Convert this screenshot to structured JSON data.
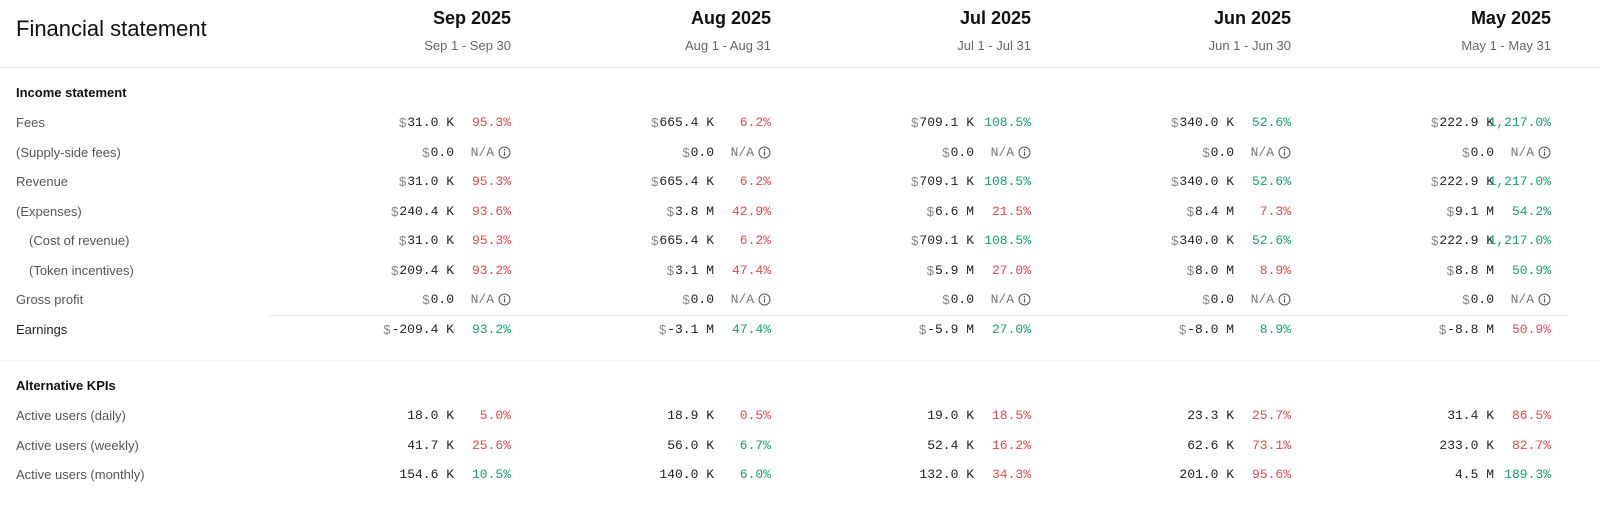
{
  "header": {
    "title": "Financial statement",
    "columns": [
      {
        "month": "Sep 2025",
        "range": "Sep 1 - Sep 30"
      },
      {
        "month": "Aug 2025",
        "range": "Aug 1 - Aug 31"
      },
      {
        "month": "Jul 2025",
        "range": "Jul 1 - Jul 31"
      },
      {
        "month": "Jun 2025",
        "range": "Jun 1 - Jun 30"
      },
      {
        "month": "May 2025",
        "range": "May 1 - May 31"
      }
    ]
  },
  "sections": [
    {
      "title": "Income statement",
      "rows": [
        {
          "label": "Fees",
          "cells": [
            {
              "currency": "$",
              "amount": "31.0 K",
              "change": "95.3%",
              "color": "#e5484d"
            },
            {
              "currency": "$",
              "amount": "665.4 K",
              "change": "6.2%",
              "color": "#e5484d"
            },
            {
              "currency": "$",
              "amount": "709.1 K",
              "change": "108.5%",
              "color": "#16a06f"
            },
            {
              "currency": "$",
              "amount": "340.0 K",
              "change": "52.6%",
              "color": "#16a06f"
            },
            {
              "currency": "$",
              "amount": "222.9 K",
              "change": "1,217.0%",
              "color": "#16a06f"
            }
          ]
        },
        {
          "label": "(Supply-side fees)",
          "cells": [
            {
              "currency": "$",
              "amount": "0.0",
              "change": "N/A"
            },
            {
              "currency": "$",
              "amount": "0.0",
              "change": "N/A"
            },
            {
              "currency": "$",
              "amount": "0.0",
              "change": "N/A"
            },
            {
              "currency": "$",
              "amount": "0.0",
              "change": "N/A"
            },
            {
              "currency": "$",
              "amount": "0.0",
              "change": "N/A"
            }
          ]
        },
        {
          "label": "Revenue",
          "cells": [
            {
              "currency": "$",
              "amount": "31.0 K",
              "change": "95.3%",
              "color": "#e5484d"
            },
            {
              "currency": "$",
              "amount": "665.4 K",
              "change": "6.2%",
              "color": "#e5484d"
            },
            {
              "currency": "$",
              "amount": "709.1 K",
              "change": "108.5%",
              "color": "#16a06f"
            },
            {
              "currency": "$",
              "amount": "340.0 K",
              "change": "52.6%",
              "color": "#16a06f"
            },
            {
              "currency": "$",
              "amount": "222.9 K",
              "change": "1,217.0%",
              "color": "#16a06f"
            }
          ]
        },
        {
          "label": "(Expenses)",
          "cells": [
            {
              "currency": "$",
              "amount": "240.4 K",
              "change": "93.6%",
              "color": "#e5484d"
            },
            {
              "currency": "$",
              "amount": "3.8 M",
              "change": "42.9%",
              "color": "#e5484d"
            },
            {
              "currency": "$",
              "amount": "6.6 M",
              "change": "21.5%",
              "color": "#e5484d"
            },
            {
              "currency": "$",
              "amount": "8.4 M",
              "change": "7.3%",
              "color": "#e5484d"
            },
            {
              "currency": "$",
              "amount": "9.1 M",
              "change": "54.2%",
              "color": "#16a06f"
            }
          ]
        },
        {
          "label": "(Cost of revenue)",
          "cells": [
            {
              "currency": "$",
              "amount": "31.0 K",
              "change": "95.3%",
              "color": "#e5484d"
            },
            {
              "currency": "$",
              "amount": "665.4 K",
              "change": "6.2%",
              "color": "#e5484d"
            },
            {
              "currency": "$",
              "amount": "709.1 K",
              "change": "108.5%",
              "color": "#16a06f"
            },
            {
              "currency": "$",
              "amount": "340.0 K",
              "change": "52.6%",
              "color": "#16a06f"
            },
            {
              "currency": "$",
              "amount": "222.9 K",
              "change": "1,217.0%",
              "color": "#16a06f"
            }
          ]
        },
        {
          "label": "(Token incentives)",
          "cells": [
            {
              "currency": "$",
              "amount": "209.4 K",
              "change": "93.2%",
              "color": "#e5484d"
            },
            {
              "currency": "$",
              "amount": "3.1 M",
              "change": "47.4%",
              "color": "#e5484d"
            },
            {
              "currency": "$",
              "amount": "5.9 M",
              "change": "27.0%",
              "color": "#e5484d"
            },
            {
              "currency": "$",
              "amount": "8.0 M",
              "change": "8.9%",
              "color": "#e5484d"
            },
            {
              "currency": "$",
              "amount": "8.8 M",
              "change": "50.9%",
              "color": "#16a06f"
            }
          ]
        },
        {
          "label": "Gross profit",
          "cells": [
            {
              "currency": "$",
              "amount": "0.0",
              "change": "N/A"
            },
            {
              "currency": "$",
              "amount": "0.0",
              "change": "N/A"
            },
            {
              "currency": "$",
              "amount": "0.0",
              "change": "N/A"
            },
            {
              "currency": "$",
              "amount": "0.0",
              "change": "N/A"
            },
            {
              "currency": "$",
              "amount": "0.0",
              "change": "N/A"
            }
          ]
        },
        {
          "label": "Earnings",
          "cells": [
            {
              "currency": "$",
              "amount": "-209.4 K",
              "change": "93.2%",
              "color": "#16a06f"
            },
            {
              "currency": "$",
              "amount": "-3.1 M",
              "change": "47.4%",
              "color": "#16a06f"
            },
            {
              "currency": "$",
              "amount": "-5.9 M",
              "change": "27.0%",
              "color": "#16a06f"
            },
            {
              "currency": "$",
              "amount": "-8.0 M",
              "change": "8.9%",
              "color": "#16a06f"
            },
            {
              "currency": "$",
              "amount": "-8.8 M",
              "change": "50.9%",
              "color": "#e5484d"
            }
          ]
        }
      ]
    },
    {
      "title": "Alternative KPIs",
      "rows": [
        {
          "label": "Active users (daily)",
          "cells": [
            {
              "amount": "18.0 K",
              "change": "5.0%",
              "color": "#e5484d"
            },
            {
              "amount": "18.9 K",
              "change": "0.5%",
              "color": "#e5484d"
            },
            {
              "amount": "19.0 K",
              "change": "18.5%",
              "color": "#e5484d"
            },
            {
              "amount": "23.3 K",
              "change": "25.7%",
              "color": "#e5484d"
            },
            {
              "amount": "31.4 K",
              "change": "86.5%",
              "color": "#e5484d"
            }
          ]
        },
        {
          "label": "Active users (weekly)",
          "cells": [
            {
              "amount": "41.7 K",
              "change": "25.6%",
              "color": "#e5484d"
            },
            {
              "amount": "56.0 K",
              "change": "6.7%",
              "color": "#16a06f"
            },
            {
              "amount": "52.4 K",
              "change": "16.2%",
              "color": "#e5484d"
            },
            {
              "amount": "62.6 K",
              "change": "73.1%",
              "color": "#e5484d"
            },
            {
              "amount": "233.0 K",
              "change": "82.7%",
              "color": "#e5484d"
            }
          ]
        },
        {
          "label": "Active users (monthly)",
          "cells": [
            {
              "amount": "154.6 K",
              "change": "10.5%",
              "color": "#16a06f"
            },
            {
              "amount": "140.0 K",
              "change": "6.0%",
              "color": "#16a06f"
            },
            {
              "amount": "132.0 K",
              "change": "34.3%",
              "color": "#e5484d"
            },
            {
              "amount": "201.0 K",
              "change": "95.6%",
              "color": "#e5484d"
            },
            {
              "amount": "4.5 M",
              "change": "189.3%",
              "color": "#16a06f"
            }
          ]
        }
      ]
    }
  ]
}
